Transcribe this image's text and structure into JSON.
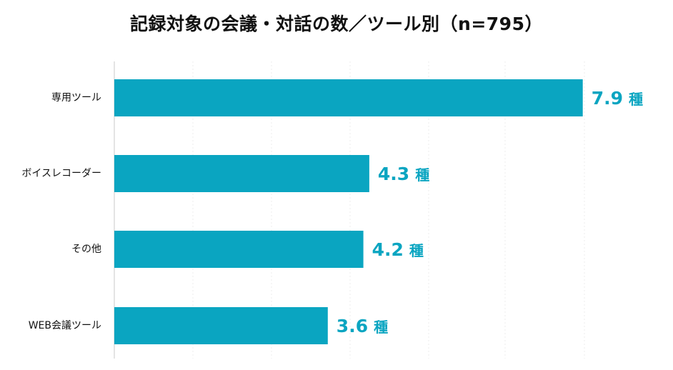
{
  "chart_data": {
    "type": "bar",
    "orientation": "horizontal",
    "title": "記録対象の会議・対話の数／ツール別（n=795）",
    "categories": [
      "専用ツール",
      "ボイスレコーダー",
      "その他",
      "WEB会議ツール"
    ],
    "values": [
      7.9,
      4.3,
      4.2,
      3.6
    ],
    "value_unit": "種",
    "xlim": [
      0,
      10
    ],
    "grid": true,
    "legend": "none",
    "colors": {
      "bar": "#0aa5c1",
      "value_label": "#0aa5c1",
      "axis": "#c8c8c8",
      "grid": "#ececec"
    }
  }
}
